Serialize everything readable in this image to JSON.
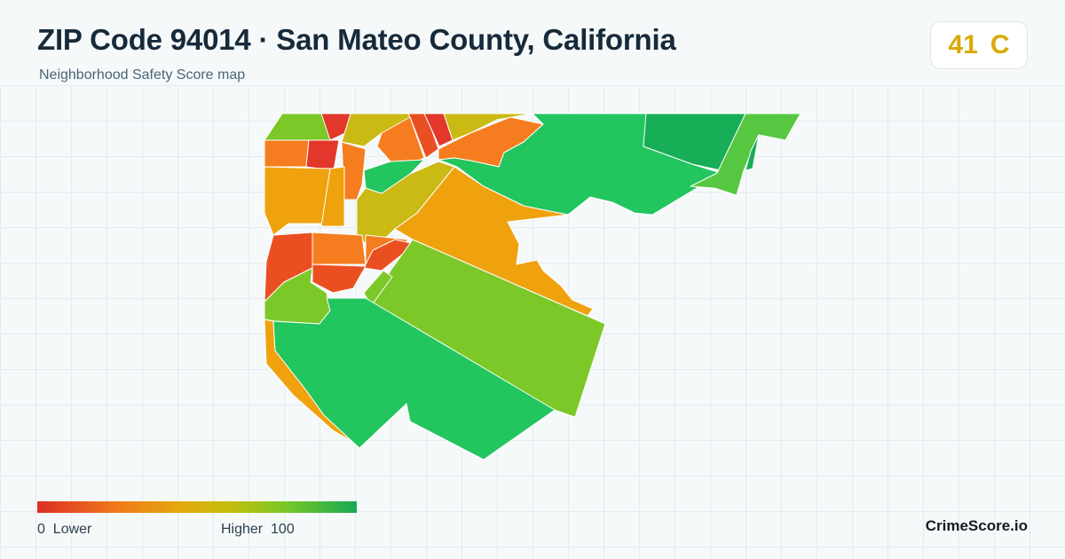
{
  "header": {
    "title": "ZIP Code 94014 · San Mateo County, California",
    "subtitle": "Neighborhood Safety Score map"
  },
  "score": {
    "value": "41",
    "grade": "C",
    "color": "#d9aa07"
  },
  "legend": {
    "low_value": "0",
    "low_label": "Lower",
    "high_label": "Higher",
    "high_value": "100",
    "colors": [
      "#dc2f26",
      "#f07a1a",
      "#e2a90e",
      "#c5bd0c",
      "#77c829",
      "#17a852"
    ]
  },
  "brand": "CrimeScore.io",
  "map": {
    "region": "94014",
    "colors": {
      "red": "#e2372a",
      "red_orange": "#ea4f22",
      "orange": "#f57d1f",
      "amber": "#efa20e",
      "olive": "#cbb914",
      "light_green": "#7cc828",
      "green": "#56c741",
      "bright_green": "#22c55e",
      "dark_green": "#18ad57"
    }
  }
}
